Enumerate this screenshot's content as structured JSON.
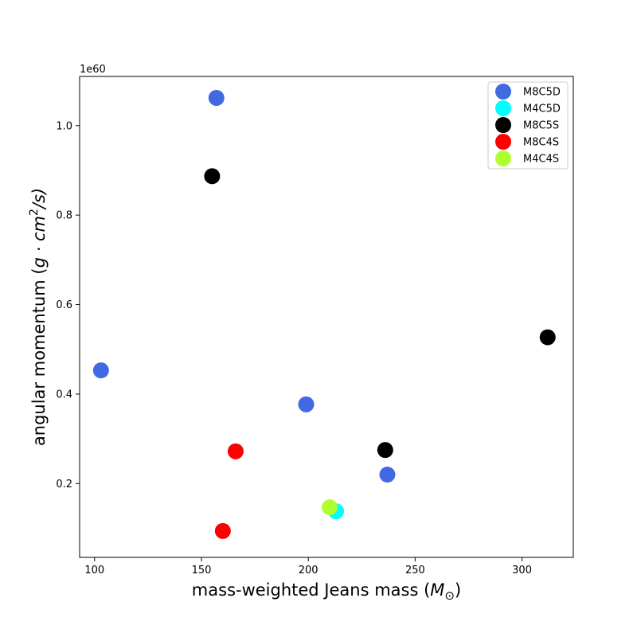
{
  "chart_data": {
    "type": "scatter",
    "title": "",
    "xlabel": "mass-weighted Jeans mass (",
    "xlabel_symbol": "M",
    "xlabel_subscript": "⊙",
    "xlabel_close": ")",
    "ylabel": "angular momentum (",
    "ylabel_math": "g · cm",
    "ylabel_sup": "2",
    "ylabel_tail": "/s)",
    "y_offset_label": "1e60",
    "xlim": [
      93,
      324
    ],
    "ylim": [
      0.035,
      1.11
    ],
    "x_ticks": [
      100,
      150,
      200,
      250,
      300
    ],
    "y_ticks": [
      0.2,
      0.4,
      0.6,
      0.8,
      1.0
    ],
    "x_tick_labels": [
      "100",
      "150",
      "200",
      "250",
      "300"
    ],
    "y_tick_labels": [
      "0.2",
      "0.4",
      "0.6",
      "0.8",
      "1.0"
    ],
    "grid": false,
    "legend_position": "top-right",
    "series": [
      {
        "name": "M8C5D",
        "color": "#4169e1",
        "points": [
          [
            157,
            1.062
          ],
          [
            103,
            0.453
          ],
          [
            199,
            0.377
          ],
          [
            237,
            0.22
          ]
        ]
      },
      {
        "name": "M4C5D",
        "color": "#00ffff",
        "points": [
          [
            213,
            0.138
          ]
        ]
      },
      {
        "name": "M8C5S",
        "color": "#000000",
        "points": [
          [
            155,
            0.887
          ],
          [
            312,
            0.527
          ],
          [
            236,
            0.275
          ]
        ]
      },
      {
        "name": "M8C4S",
        "color": "#ff0000",
        "points": [
          [
            166,
            0.272
          ],
          [
            160,
            0.094
          ]
        ]
      },
      {
        "name": "M4C4S",
        "color": "#adff2f",
        "points": [
          [
            210,
            0.147
          ]
        ]
      }
    ]
  }
}
